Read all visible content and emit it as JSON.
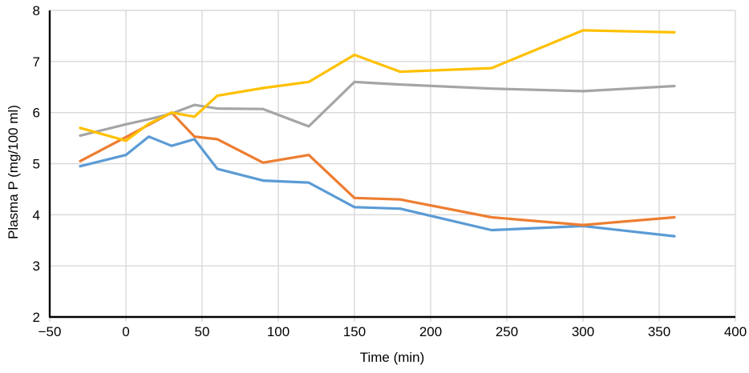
{
  "chart_data": {
    "type": "line",
    "x": [
      -30,
      0,
      15,
      30,
      45,
      60,
      90,
      120,
      150,
      180,
      240,
      300,
      360
    ],
    "series": [
      {
        "name": "blue",
        "color": "#5B9BD5",
        "values": [
          4.95,
          5.17,
          5.53,
          5.35,
          5.48,
          4.9,
          4.67,
          4.63,
          4.15,
          4.12,
          3.7,
          3.78,
          3.58
        ]
      },
      {
        "name": "orange",
        "color": "#ED7D31",
        "values": [
          5.05,
          5.52,
          5.76,
          6.0,
          5.53,
          5.48,
          5.02,
          5.17,
          4.33,
          4.3,
          3.95,
          3.8,
          3.95
        ]
      },
      {
        "name": "gray",
        "color": "#A5A5A5",
        "values": [
          5.55,
          5.77,
          5.87,
          5.98,
          6.15,
          6.08,
          6.07,
          5.73,
          6.6,
          6.55,
          6.47,
          6.42,
          6.52
        ]
      },
      {
        "name": "yellow",
        "color": "#FFC000",
        "values": [
          5.7,
          5.45,
          5.78,
          6.0,
          5.92,
          6.33,
          6.48,
          6.6,
          7.13,
          6.8,
          6.87,
          7.61,
          7.57
        ]
      }
    ],
    "xlabel": "Time (min)",
    "ylabel": "Plasma P (mg/100 ml)",
    "xlim": [
      -50,
      400
    ],
    "ylim": [
      2,
      8
    ],
    "x_ticks": [
      -50,
      0,
      50,
      100,
      150,
      200,
      250,
      300,
      350,
      400
    ],
    "x_tick_labels": [
      "−50",
      "0",
      "50",
      "100",
      "150",
      "200",
      "250",
      "300",
      "350",
      "400"
    ],
    "y_ticks": [
      2,
      3,
      4,
      5,
      6,
      7,
      8
    ],
    "y_tick_labels": [
      "2",
      "3",
      "4",
      "5",
      "6",
      "7",
      "8"
    ],
    "grid": true,
    "legend": "none"
  },
  "style": {
    "gridline_color": "#D9D9D9",
    "axis_color": "#000000",
    "background_color": "#FFFFFF",
    "line_width": 3.2
  }
}
